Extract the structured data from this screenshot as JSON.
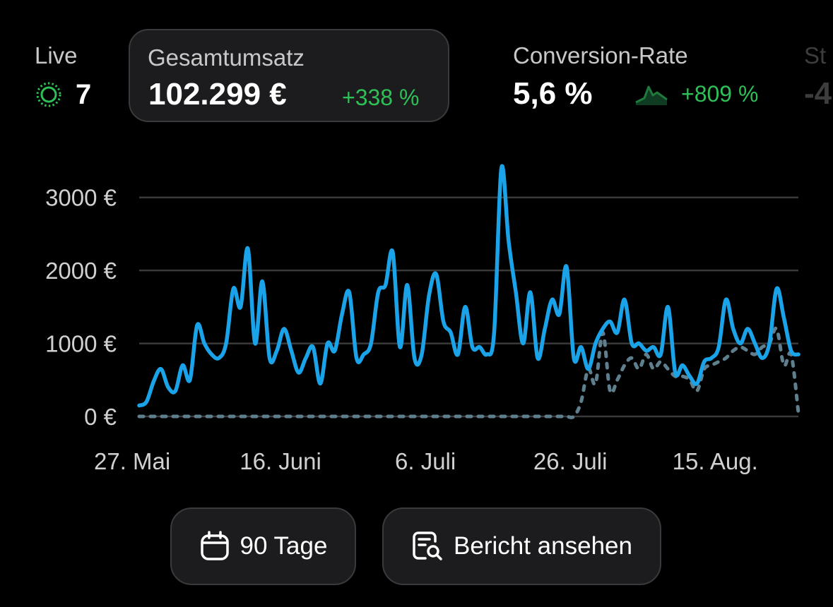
{
  "metrics": {
    "live": {
      "label": "Live",
      "value": "7",
      "icon": "live-pulse-icon",
      "color": "#2fbf57"
    },
    "revenue": {
      "label": "Gesamtumsatz",
      "value": "102.299 €",
      "delta": "+338 %",
      "selected": true
    },
    "conversion": {
      "label": "Conversion-Rate",
      "value": "5,6 %",
      "delta": "+809 %",
      "icon": "sparkline-icon"
    },
    "cut_off": {
      "label": "St",
      "value": "-4"
    }
  },
  "chart_data": {
    "type": "line",
    "y_tick_labels": [
      "0 €",
      "1000 €",
      "2000 €",
      "3000 €"
    ],
    "ylim": [
      0,
      3500
    ],
    "grid": true,
    "x_start": "27. Mai",
    "x_end": "24. Aug.",
    "x_tick_labels": [
      "27. Mai",
      "16. Juni",
      "6. Juli",
      "26. Juli",
      "15. Aug."
    ],
    "x_tick_days": [
      0,
      20,
      40,
      60,
      80
    ],
    "series": [
      {
        "style": "solid",
        "color": "#1aa3e8",
        "values": [
          150,
          200,
          480,
          650,
          400,
          350,
          700,
          500,
          1250,
          1000,
          850,
          800,
          1000,
          1750,
          1500,
          2300,
          1000,
          1850,
          800,
          900,
          1200,
          900,
          600,
          800,
          950,
          450,
          1000,
          900,
          1400,
          1700,
          800,
          850,
          1000,
          1700,
          1800,
          2250,
          950,
          1800,
          800,
          850,
          1650,
          1950,
          1300,
          1150,
          850,
          1500,
          950,
          950,
          850,
          1150,
          3400,
          2400,
          1700,
          1000,
          1700,
          800,
          1200,
          1600,
          1400,
          2050,
          800,
          950,
          650,
          1000,
          1200,
          1300,
          1150,
          1600,
          1000,
          1000,
          900,
          950,
          850,
          1500,
          600,
          700,
          550,
          450,
          750,
          800,
          950,
          1600,
          1200,
          1000,
          1200,
          1000,
          800,
          1000,
          1750,
          1350,
          900,
          850
        ]
      },
      {
        "style": "dotted",
        "color": "#5f7f8f",
        "values": [
          0,
          0,
          0,
          0,
          0,
          0,
          0,
          0,
          0,
          0,
          0,
          0,
          0,
          0,
          0,
          0,
          0,
          0,
          0,
          0,
          0,
          0,
          0,
          0,
          0,
          0,
          0,
          0,
          0,
          0,
          0,
          0,
          0,
          0,
          0,
          0,
          0,
          0,
          0,
          0,
          0,
          0,
          0,
          0,
          0,
          0,
          0,
          0,
          0,
          0,
          0,
          0,
          0,
          0,
          0,
          0,
          0,
          0,
          0,
          0,
          0,
          200,
          650,
          450,
          1150,
          350,
          500,
          700,
          800,
          650,
          850,
          650,
          750,
          650,
          550,
          550,
          500,
          350,
          650,
          700,
          750,
          800,
          900,
          950,
          900,
          850,
          950,
          1000,
          1200,
          700,
          850,
          50
        ]
      }
    ]
  },
  "buttons": {
    "range": {
      "label": "90 Tage",
      "icon": "calendar-icon"
    },
    "report": {
      "label": "Bericht ansehen",
      "icon": "report-search-icon"
    }
  }
}
